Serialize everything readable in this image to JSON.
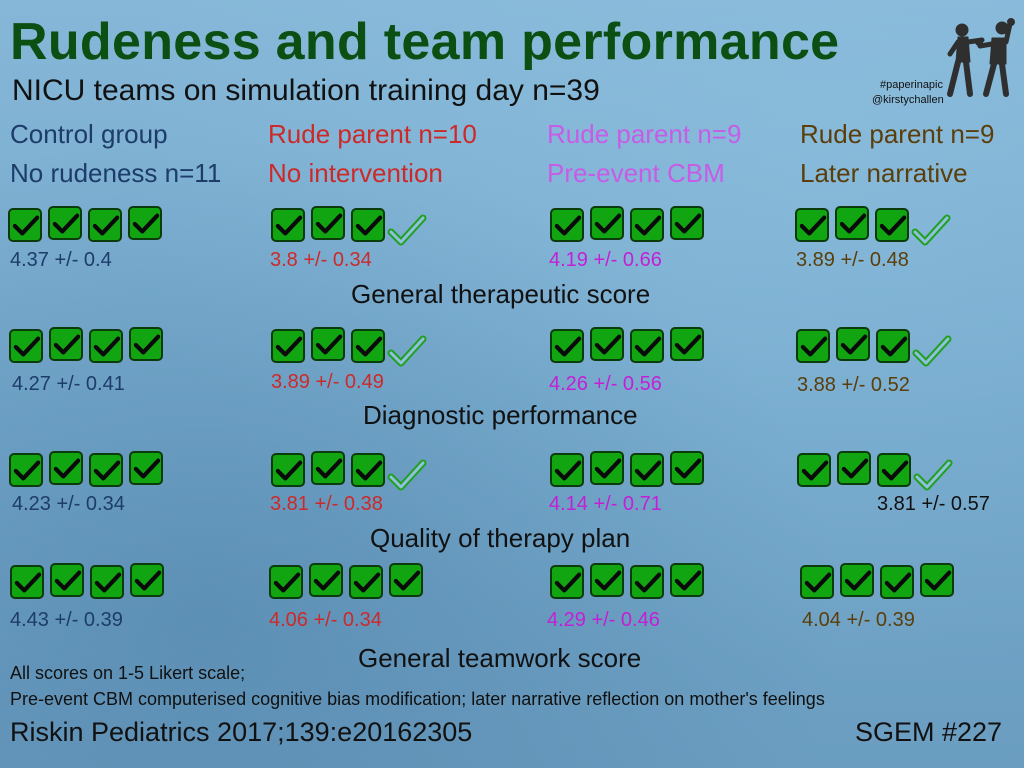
{
  "header": {
    "title": "Rudeness and team performance",
    "subtitle": "NICU teams on simulation training day n=39",
    "hashtag": "#paperinapic",
    "handle": "@kirstychallen"
  },
  "groups": [
    {
      "line1": "Control group",
      "line2": "No rudeness n=11",
      "color": "#1d3c6a"
    },
    {
      "line1": "Rude parent n=10",
      "line2": "No intervention",
      "color": "#cc2a2a"
    },
    {
      "line1": "Rude parent n=9",
      "line2": "Pre-event CBM",
      "color": "#c75ce6"
    },
    {
      "line1": "Rude parent n=9",
      "line2": "Later narrative",
      "color": "#5a3e0c"
    }
  ],
  "rows": [
    {
      "category": "General therapeutic score",
      "values": [
        "4.37 +/- 0.4",
        "3.8 +/- 0.34",
        "4.19 +/- 0.66",
        "3.89 +/- 0.48"
      ],
      "filled_checks": [
        4,
        3,
        4,
        3
      ],
      "outline_checks": [
        0,
        1,
        0,
        1
      ]
    },
    {
      "category": "Diagnostic performance",
      "values": [
        "4.27 +/- 0.41",
        "3.89 +/- 0.49",
        "4.26 +/- 0.56",
        "3.88 +/- 0.52"
      ],
      "filled_checks": [
        4,
        3,
        4,
        3
      ],
      "outline_checks": [
        0,
        1,
        0,
        1
      ]
    },
    {
      "category": "Quality of therapy plan",
      "values": [
        "4.23 +/- 0.34",
        "3.81 +/- 0.38",
        "4.14 +/- 0.71",
        "3.81 +/- 0.57"
      ],
      "filled_checks": [
        4,
        3,
        4,
        3
      ],
      "outline_checks": [
        0,
        1,
        0,
        1
      ]
    },
    {
      "category": "General teamwork score",
      "values": [
        "4.43 +/- 0.39",
        "4.06 +/- 0.34",
        "4.29 +/- 0.46",
        "4.04 +/- 0.39"
      ],
      "filled_checks": [
        4,
        4,
        4,
        4
      ],
      "outline_checks": [
        0,
        0,
        0,
        0
      ]
    }
  ],
  "notes": {
    "line1": "All scores on 1-5 Likert scale;",
    "line2": "Pre-event CBM computerised cognitive bias modification; later narrative reflection on mother's feelings"
  },
  "footer": {
    "citation": "Riskin Pediatrics 2017;139:e20162305",
    "episode": "SGEM #227"
  },
  "colors": {
    "title": "#0b4f12",
    "check_fill": "#11a511",
    "check_outline": "#22a022"
  }
}
